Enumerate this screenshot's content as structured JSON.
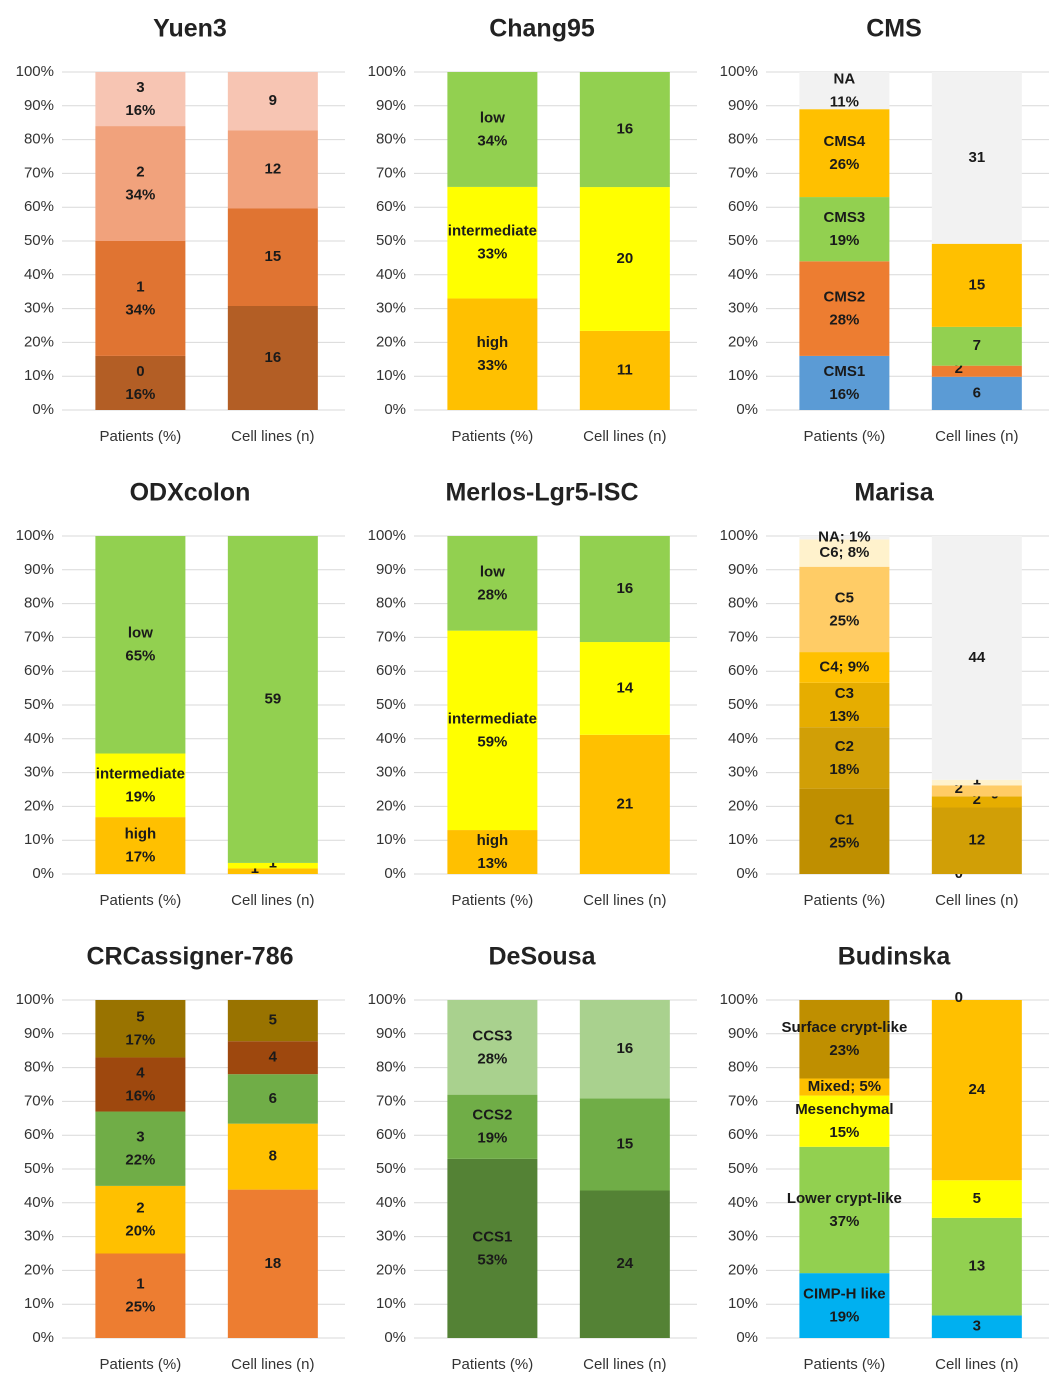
{
  "chart_data": [
    {
      "type": "bar",
      "stacking": "percent",
      "title": "Yuen3",
      "categories": [
        "Patients (%)",
        "Cell lines (n)"
      ],
      "ylim": [
        0,
        100
      ],
      "yticks": [
        {
          "value": 0,
          "label": "0%"
        },
        {
          "value": 10,
          "label": "10%"
        },
        {
          "value": 20,
          "label": "20%"
        },
        {
          "value": 30,
          "label": "30%"
        },
        {
          "value": 40,
          "label": "40%"
        },
        {
          "value": 50,
          "label": "50%"
        },
        {
          "value": 60,
          "label": "60%"
        },
        {
          "value": 70,
          "label": "70%"
        },
        {
          "value": 80,
          "label": "80%"
        },
        {
          "value": 90,
          "label": "90%"
        },
        {
          "value": 100,
          "label": "100%"
        }
      ],
      "grid": true,
      "series": [
        {
          "name": "0",
          "color": "#b35e25",
          "values": [
            16,
            16
          ],
          "value_labels": [
            "16%",
            null
          ]
        },
        {
          "name": "1",
          "color": "#e07432",
          "values": [
            34,
            15
          ],
          "value_labels": [
            "34%",
            null
          ]
        },
        {
          "name": "2",
          "color": "#f1a27c",
          "values": [
            34,
            12
          ],
          "value_labels": [
            "34%",
            null
          ]
        },
        {
          "name": "3",
          "color": "#f7c5b3",
          "values": [
            16,
            9
          ],
          "value_labels": [
            "16%",
            null
          ]
        }
      ]
    },
    {
      "type": "bar",
      "stacking": "percent",
      "title": "Chang95",
      "categories": [
        "Patients (%)",
        "Cell lines (n)"
      ],
      "ylim": [
        0,
        100
      ],
      "yticks": [
        {
          "value": 0,
          "label": "0%"
        },
        {
          "value": 10,
          "label": "10%"
        },
        {
          "value": 20,
          "label": "20%"
        },
        {
          "value": 30,
          "label": "30%"
        },
        {
          "value": 40,
          "label": "40%"
        },
        {
          "value": 50,
          "label": "50%"
        },
        {
          "value": 60,
          "label": "60%"
        },
        {
          "value": 70,
          "label": "70%"
        },
        {
          "value": 80,
          "label": "80%"
        },
        {
          "value": 90,
          "label": "90%"
        },
        {
          "value": 100,
          "label": "100%"
        }
      ],
      "grid": true,
      "series": [
        {
          "name": "high",
          "color": "#ffc000",
          "values": [
            33,
            11
          ],
          "value_labels": [
            "33%",
            null
          ]
        },
        {
          "name": "intermediate",
          "color": "#ffff00",
          "values": [
            33,
            20
          ],
          "value_labels": [
            "33%",
            null
          ]
        },
        {
          "name": "low",
          "color": "#92d050",
          "values": [
            34,
            16
          ],
          "value_labels": [
            "34%",
            null
          ]
        }
      ]
    },
    {
      "type": "bar",
      "stacking": "percent",
      "title": "CMS",
      "categories": [
        "Patients (%)",
        "Cell lines (n)"
      ],
      "ylim": [
        0,
        100
      ],
      "yticks": [
        {
          "value": 0,
          "label": "0%"
        },
        {
          "value": 10,
          "label": "10%"
        },
        {
          "value": 20,
          "label": "20%"
        },
        {
          "value": 30,
          "label": "30%"
        },
        {
          "value": 40,
          "label": "40%"
        },
        {
          "value": 50,
          "label": "50%"
        },
        {
          "value": 60,
          "label": "60%"
        },
        {
          "value": 70,
          "label": "70%"
        },
        {
          "value": 80,
          "label": "80%"
        },
        {
          "value": 90,
          "label": "90%"
        },
        {
          "value": 100,
          "label": "100%"
        }
      ],
      "grid": true,
      "series": [
        {
          "name": "CMS1",
          "color": "#5b9bd5",
          "values": [
            16,
            6
          ],
          "value_labels": [
            "16%",
            null
          ]
        },
        {
          "name": "CMS2",
          "color": "#ed7d31",
          "values": [
            28,
            2
          ],
          "value_labels": [
            "28%",
            null
          ]
        },
        {
          "name": "CMS3",
          "color": "#92d050",
          "values": [
            19,
            7
          ],
          "value_labels": [
            "19%",
            null
          ]
        },
        {
          "name": "CMS4",
          "color": "#ffc000",
          "values": [
            26,
            15
          ],
          "value_labels": [
            "26%",
            null
          ]
        },
        {
          "name": "NA",
          "color": "#f2f2f2",
          "values": [
            11,
            31
          ],
          "value_labels": [
            "11%",
            null
          ]
        }
      ]
    },
    {
      "type": "bar",
      "stacking": "percent",
      "title": "ODXcolon",
      "categories": [
        "Patients (%)",
        "Cell lines (n)"
      ],
      "ylim": [
        0,
        100
      ],
      "yticks": [
        {
          "value": 0,
          "label": "0%"
        },
        {
          "value": 10,
          "label": "10%"
        },
        {
          "value": 20,
          "label": "20%"
        },
        {
          "value": 30,
          "label": "30%"
        },
        {
          "value": 40,
          "label": "40%"
        },
        {
          "value": 50,
          "label": "50%"
        },
        {
          "value": 60,
          "label": "60%"
        },
        {
          "value": 70,
          "label": "70%"
        },
        {
          "value": 80,
          "label": "80%"
        },
        {
          "value": 90,
          "label": "90%"
        },
        {
          "value": 100,
          "label": "100%"
        }
      ],
      "grid": true,
      "series": [
        {
          "name": "high",
          "color": "#ffc000",
          "values": [
            17,
            1
          ],
          "value_labels": [
            "17%",
            null
          ]
        },
        {
          "name": "intermediate",
          "color": "#ffff00",
          "values": [
            19,
            1
          ],
          "value_labels": [
            "19%",
            null
          ]
        },
        {
          "name": "low",
          "color": "#92d050",
          "values": [
            65,
            59
          ],
          "value_labels": [
            "65%",
            null
          ]
        }
      ]
    },
    {
      "type": "bar",
      "stacking": "percent",
      "title": "Merlos-Lgr5-ISC",
      "categories": [
        "Patients (%)",
        "Cell lines (n)"
      ],
      "ylim": [
        0,
        100
      ],
      "yticks": [
        {
          "value": 0,
          "label": "0%"
        },
        {
          "value": 10,
          "label": "10%"
        },
        {
          "value": 20,
          "label": "20%"
        },
        {
          "value": 30,
          "label": "30%"
        },
        {
          "value": 40,
          "label": "40%"
        },
        {
          "value": 50,
          "label": "50%"
        },
        {
          "value": 60,
          "label": "60%"
        },
        {
          "value": 70,
          "label": "70%"
        },
        {
          "value": 80,
          "label": "80%"
        },
        {
          "value": 90,
          "label": "90%"
        },
        {
          "value": 100,
          "label": "100%"
        }
      ],
      "grid": true,
      "series": [
        {
          "name": "high",
          "color": "#ffc000",
          "values": [
            13,
            21
          ],
          "value_labels": [
            "13%",
            null
          ]
        },
        {
          "name": "intermediate",
          "color": "#ffff00",
          "values": [
            59,
            14
          ],
          "value_labels": [
            "59%",
            null
          ]
        },
        {
          "name": "low",
          "color": "#92d050",
          "values": [
            28,
            16
          ],
          "value_labels": [
            "28%",
            null
          ]
        }
      ]
    },
    {
      "type": "bar",
      "stacking": "percent",
      "title": "Marisa",
      "categories": [
        "Patients (%)",
        "Cell lines (n)"
      ],
      "ylim": [
        0,
        100
      ],
      "yticks": [
        {
          "value": 0,
          "label": "0%"
        },
        {
          "value": 10,
          "label": "10%"
        },
        {
          "value": 20,
          "label": "20%"
        },
        {
          "value": 30,
          "label": "30%"
        },
        {
          "value": 40,
          "label": "40%"
        },
        {
          "value": 50,
          "label": "50%"
        },
        {
          "value": 60,
          "label": "60%"
        },
        {
          "value": 70,
          "label": "70%"
        },
        {
          "value": 80,
          "label": "80%"
        },
        {
          "value": 90,
          "label": "90%"
        },
        {
          "value": 100,
          "label": "100%"
        }
      ],
      "grid": true,
      "series": [
        {
          "name": "C1",
          "color": "#bf8f00",
          "values": [
            25,
            0
          ],
          "value_labels": [
            "25%",
            null
          ]
        },
        {
          "name": "C2",
          "color": "#d19f06",
          "values": [
            18,
            12
          ],
          "value_labels": [
            "18%",
            null
          ]
        },
        {
          "name": "C3",
          "color": "#e6ad00",
          "values": [
            13,
            2
          ],
          "value_labels": [
            "13%",
            null
          ]
        },
        {
          "color": "#ffc000",
          "values": [
            9,
            0
          ],
          "value_labels": [
            "C4; 9%",
            null
          ]
        },
        {
          "name": "C5",
          "color": "#ffcc66",
          "values": [
            25,
            2
          ],
          "value_labels": [
            "25%",
            null
          ]
        },
        {
          "color": "#fff2cc",
          "values": [
            8,
            1
          ],
          "value_labels": [
            "C6; 8%",
            null
          ]
        },
        {
          "color": "#f2f2f2",
          "values": [
            1,
            44
          ],
          "value_labels": [
            "NA; 1%",
            null
          ]
        }
      ]
    },
    {
      "type": "bar",
      "stacking": "percent",
      "title": "CRCassigner-786",
      "categories": [
        "Patients (%)",
        "Cell lines (n)"
      ],
      "ylim": [
        0,
        100
      ],
      "yticks": [
        {
          "value": 0,
          "label": "0%"
        },
        {
          "value": 10,
          "label": "10%"
        },
        {
          "value": 20,
          "label": "20%"
        },
        {
          "value": 30,
          "label": "30%"
        },
        {
          "value": 40,
          "label": "40%"
        },
        {
          "value": 50,
          "label": "50%"
        },
        {
          "value": 60,
          "label": "60%"
        },
        {
          "value": 70,
          "label": "70%"
        },
        {
          "value": 80,
          "label": "80%"
        },
        {
          "value": 90,
          "label": "90%"
        },
        {
          "value": 100,
          "label": "100%"
        }
      ],
      "grid": true,
      "series": [
        {
          "name": "1",
          "color": "#ed7d31",
          "values": [
            25,
            18
          ],
          "value_labels": [
            "25%",
            null
          ]
        },
        {
          "name": "2",
          "color": "#ffc000",
          "values": [
            20,
            8
          ],
          "value_labels": [
            "20%",
            null
          ]
        },
        {
          "name": "3",
          "color": "#70ad47",
          "values": [
            22,
            6
          ],
          "value_labels": [
            "22%",
            null
          ]
        },
        {
          "name": "4",
          "color": "#9e480e",
          "values": [
            16,
            4
          ],
          "value_labels": [
            "16%",
            null
          ]
        },
        {
          "name": "5",
          "color": "#997300",
          "values": [
            17,
            5
          ],
          "value_labels": [
            "17%",
            null
          ]
        }
      ]
    },
    {
      "type": "bar",
      "stacking": "percent",
      "title": "DeSousa",
      "categories": [
        "Patients (%)",
        "Cell lines (n)"
      ],
      "ylim": [
        0,
        100
      ],
      "yticks": [
        {
          "value": 0,
          "label": "0%"
        },
        {
          "value": 10,
          "label": "10%"
        },
        {
          "value": 20,
          "label": "20%"
        },
        {
          "value": 30,
          "label": "30%"
        },
        {
          "value": 40,
          "label": "40%"
        },
        {
          "value": 50,
          "label": "50%"
        },
        {
          "value": 60,
          "label": "60%"
        },
        {
          "value": 70,
          "label": "70%"
        },
        {
          "value": 80,
          "label": "80%"
        },
        {
          "value": 90,
          "label": "90%"
        },
        {
          "value": 100,
          "label": "100%"
        }
      ],
      "grid": true,
      "series": [
        {
          "name": "CCS1",
          "color": "#548235",
          "values": [
            53,
            24
          ],
          "value_labels": [
            "53%",
            null
          ]
        },
        {
          "name": "CCS2",
          "color": "#70ad47",
          "values": [
            19,
            15
          ],
          "value_labels": [
            "19%",
            null
          ]
        },
        {
          "name": "CCS3",
          "color": "#a9d18e",
          "values": [
            28,
            16
          ],
          "value_labels": [
            "28%",
            null
          ]
        }
      ]
    },
    {
      "type": "bar",
      "stacking": "percent",
      "title": "Budinska",
      "categories": [
        "Patients (%)",
        "Cell lines (n)"
      ],
      "ylim": [
        0,
        100
      ],
      "yticks": [
        {
          "value": 0,
          "label": "0%"
        },
        {
          "value": 10,
          "label": "10%"
        },
        {
          "value": 20,
          "label": "20%"
        },
        {
          "value": 30,
          "label": "30%"
        },
        {
          "value": 40,
          "label": "40%"
        },
        {
          "value": 50,
          "label": "50%"
        },
        {
          "value": 60,
          "label": "60%"
        },
        {
          "value": 70,
          "label": "70%"
        },
        {
          "value": 80,
          "label": "80%"
        },
        {
          "value": 90,
          "label": "90%"
        },
        {
          "value": 100,
          "label": "100%"
        }
      ],
      "grid": true,
      "series": [
        {
          "name": "CIMP-H like",
          "color": "#00b0f0",
          "values": [
            19,
            3
          ],
          "value_labels": [
            "19%",
            null
          ]
        },
        {
          "name": "Lower crypt-like",
          "color": "#92d050",
          "values": [
            37,
            13
          ],
          "value_labels": [
            "37%",
            null
          ]
        },
        {
          "name": "Mesenchymal",
          "color": "#ffff00",
          "values": [
            15,
            5
          ],
          "value_labels": [
            "15%",
            null
          ]
        },
        {
          "color": "#ffc000",
          "values": [
            5,
            24
          ],
          "value_labels": [
            "Mixed; 5%",
            null
          ]
        },
        {
          "name": "Surface crypt-like",
          "color": "#bf8f00",
          "values": [
            23,
            0
          ],
          "value_labels": [
            "23%",
            null
          ]
        }
      ]
    }
  ]
}
